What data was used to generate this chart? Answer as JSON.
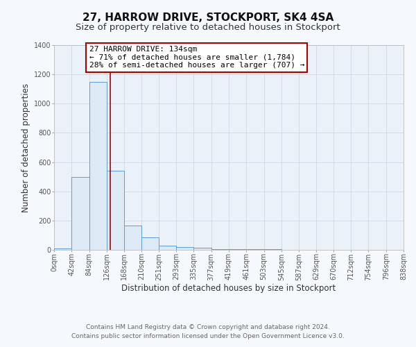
{
  "title": "27, HARROW DRIVE, STOCKPORT, SK4 4SA",
  "subtitle": "Size of property relative to detached houses in Stockport",
  "xlabel": "Distribution of detached houses by size in Stockport",
  "ylabel": "Number of detached properties",
  "footer_line1": "Contains HM Land Registry data © Crown copyright and database right 2024.",
  "footer_line2": "Contains public sector information licensed under the Open Government Licence v3.0.",
  "bar_edges": [
    0,
    42,
    84,
    126,
    168,
    210,
    251,
    293,
    335,
    377,
    419,
    461,
    503,
    545,
    587,
    629,
    670,
    712,
    754,
    796,
    838
  ],
  "bar_heights": [
    10,
    500,
    1150,
    540,
    165,
    85,
    30,
    20,
    15,
    5,
    5,
    5,
    5,
    0,
    0,
    0,
    0,
    0,
    0,
    0
  ],
  "bar_color": "#ddeaf5",
  "bar_edge_color": "#5a9fd4",
  "bar_linewidth": 0.7,
  "vline_x": 134,
  "vline_color": "#aa0000",
  "vline_linewidth": 1.2,
  "annotation_title": "27 HARROW DRIVE: 134sqm",
  "annotation_line2": "← 71% of detached houses are smaller (1,784)",
  "annotation_line3": "28% of semi-detached houses are larger (707) →",
  "annotation_box_color": "#aa0000",
  "annotation_bg_color": "#ffffff",
  "annotation_text_color": "#000000",
  "ylim": [
    0,
    1400
  ],
  "xlim": [
    0,
    838
  ],
  "xtick_labels": [
    "0sqm",
    "42sqm",
    "84sqm",
    "126sqm",
    "168sqm",
    "210sqm",
    "251sqm",
    "293sqm",
    "335sqm",
    "377sqm",
    "419sqm",
    "461sqm",
    "503sqm",
    "545sqm",
    "587sqm",
    "629sqm",
    "670sqm",
    "712sqm",
    "754sqm",
    "796sqm",
    "838sqm"
  ],
  "xtick_positions": [
    0,
    42,
    84,
    126,
    168,
    210,
    251,
    293,
    335,
    377,
    419,
    461,
    503,
    545,
    587,
    629,
    670,
    712,
    754,
    796,
    838
  ],
  "bg_color": "#f5f8fc",
  "plot_bg_color": "#eaf1f8",
  "grid_color": "#c8d4e0",
  "title_fontsize": 11,
  "subtitle_fontsize": 9.5,
  "axis_label_fontsize": 8.5,
  "tick_fontsize": 7,
  "annotation_fontsize": 8,
  "footer_fontsize": 6.5
}
